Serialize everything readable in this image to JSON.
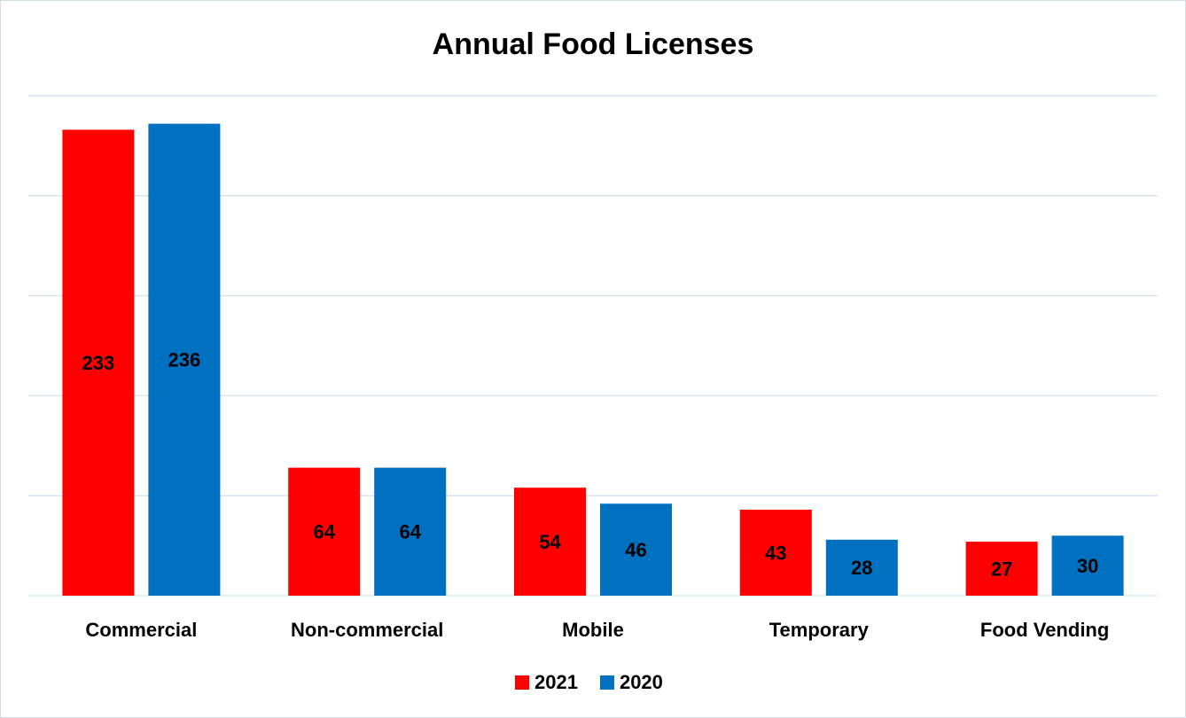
{
  "chart_data": {
    "type": "bar",
    "title": "Annual Food Licenses",
    "categories": [
      "Commercial",
      "Non-commercial",
      "Mobile",
      "Temporary",
      "Food Vending"
    ],
    "series": [
      {
        "name": "2021",
        "color": "#ff0000",
        "values": [
          233,
          64,
          54,
          43,
          27
        ]
      },
      {
        "name": "2020",
        "color": "#0070c0",
        "values": [
          236,
          64,
          46,
          28,
          30
        ]
      }
    ],
    "ylim": [
      0,
      250
    ],
    "yticks": [
      0,
      50,
      100,
      150,
      200,
      250
    ],
    "grid": true,
    "legend": "bottom"
  }
}
